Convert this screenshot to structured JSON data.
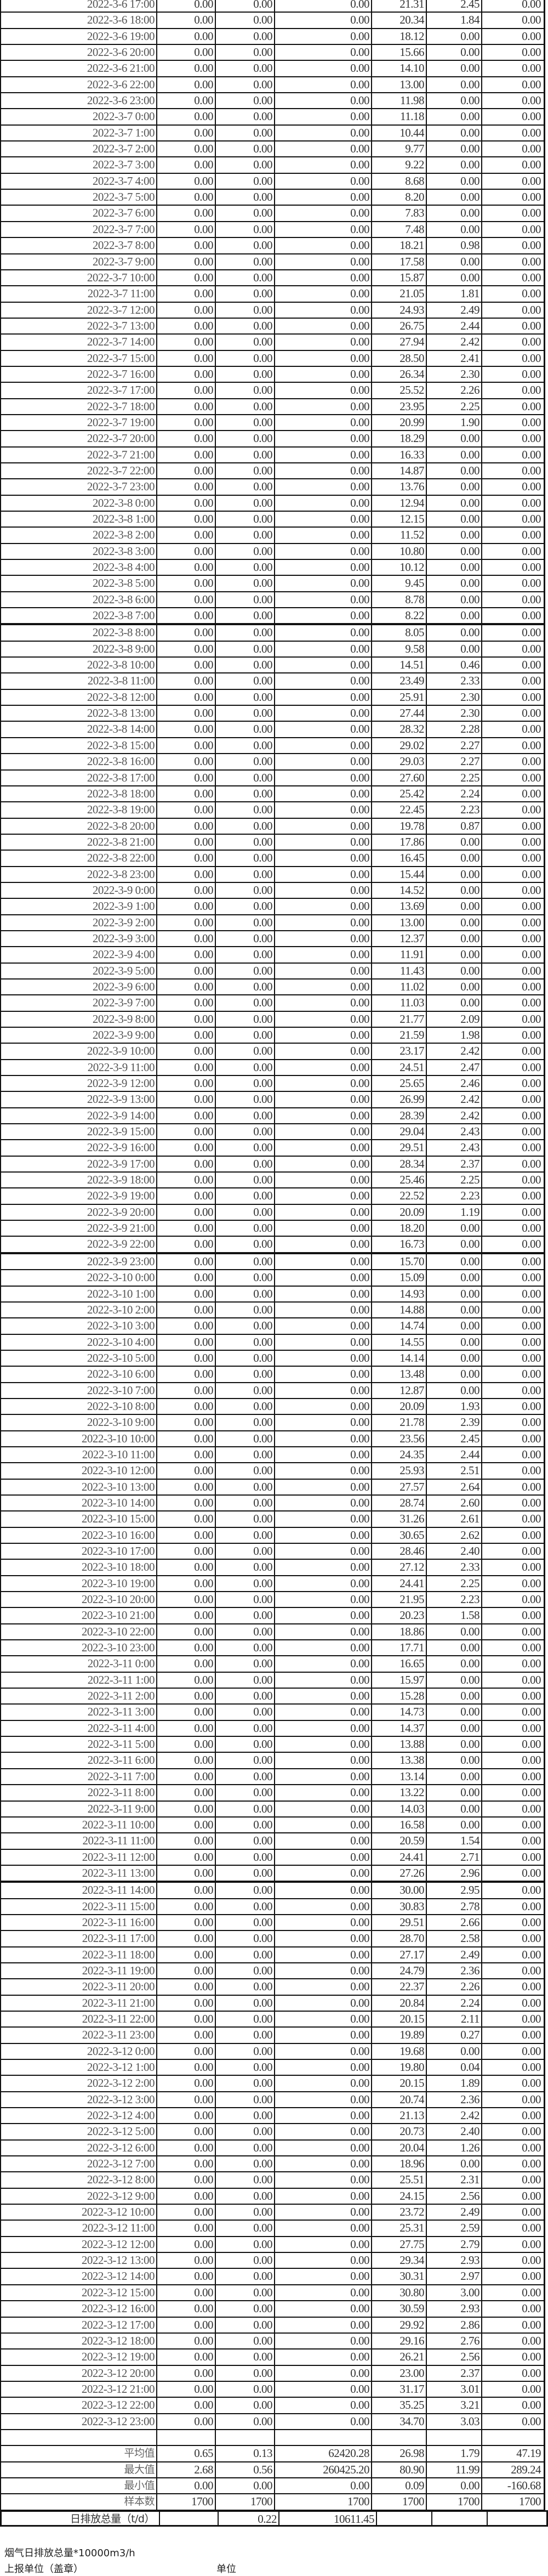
{
  "rows": [
    [
      "2022-3-6 17:00",
      "0.00",
      "0.00",
      "0.00",
      "21.31",
      "2.45",
      "0.00"
    ],
    [
      "2022-3-6 18:00",
      "0.00",
      "0.00",
      "0.00",
      "20.34",
      "1.84",
      "0.00"
    ],
    [
      "2022-3-6 19:00",
      "0.00",
      "0.00",
      "0.00",
      "18.12",
      "0.00",
      "0.00"
    ],
    [
      "2022-3-6 20:00",
      "0.00",
      "0.00",
      "0.00",
      "15.66",
      "0.00",
      "0.00"
    ],
    [
      "2022-3-6 21:00",
      "0.00",
      "0.00",
      "0.00",
      "14.10",
      "0.00",
      "0.00"
    ],
    [
      "2022-3-6 22:00",
      "0.00",
      "0.00",
      "0.00",
      "13.00",
      "0.00",
      "0.00"
    ],
    [
      "2022-3-6 23:00",
      "0.00",
      "0.00",
      "0.00",
      "11.98",
      "0.00",
      "0.00"
    ],
    [
      "2022-3-7 0:00",
      "0.00",
      "0.00",
      "0.00",
      "11.18",
      "0.00",
      "0.00"
    ],
    [
      "2022-3-7 1:00",
      "0.00",
      "0.00",
      "0.00",
      "10.44",
      "0.00",
      "0.00"
    ],
    [
      "2022-3-7 2:00",
      "0.00",
      "0.00",
      "0.00",
      "9.77",
      "0.00",
      "0.00"
    ],
    [
      "2022-3-7 3:00",
      "0.00",
      "0.00",
      "0.00",
      "9.22",
      "0.00",
      "0.00"
    ],
    [
      "2022-3-7 4:00",
      "0.00",
      "0.00",
      "0.00",
      "8.68",
      "0.00",
      "0.00"
    ],
    [
      "2022-3-7 5:00",
      "0.00",
      "0.00",
      "0.00",
      "8.20",
      "0.00",
      "0.00"
    ],
    [
      "2022-3-7 6:00",
      "0.00",
      "0.00",
      "0.00",
      "7.83",
      "0.00",
      "0.00"
    ],
    [
      "2022-3-7 7:00",
      "0.00",
      "0.00",
      "0.00",
      "7.48",
      "0.00",
      "0.00"
    ],
    [
      "2022-3-7 8:00",
      "0.00",
      "0.00",
      "0.00",
      "18.21",
      "0.98",
      "0.00"
    ],
    [
      "2022-3-7 9:00",
      "0.00",
      "0.00",
      "0.00",
      "17.58",
      "0.00",
      "0.00"
    ],
    [
      "2022-3-7 10:00",
      "0.00",
      "0.00",
      "0.00",
      "15.87",
      "0.00",
      "0.00"
    ],
    [
      "2022-3-7 11:00",
      "0.00",
      "0.00",
      "0.00",
      "21.05",
      "1.81",
      "0.00"
    ],
    [
      "2022-3-7 12:00",
      "0.00",
      "0.00",
      "0.00",
      "24.93",
      "2.49",
      "0.00"
    ],
    [
      "2022-3-7 13:00",
      "0.00",
      "0.00",
      "0.00",
      "26.75",
      "2.44",
      "0.00"
    ],
    [
      "2022-3-7 14:00",
      "0.00",
      "0.00",
      "0.00",
      "27.94",
      "2.42",
      "0.00"
    ],
    [
      "2022-3-7 15:00",
      "0.00",
      "0.00",
      "0.00",
      "28.50",
      "2.41",
      "0.00"
    ],
    [
      "2022-3-7 16:00",
      "0.00",
      "0.00",
      "0.00",
      "26.34",
      "2.30",
      "0.00"
    ],
    [
      "2022-3-7 17:00",
      "0.00",
      "0.00",
      "0.00",
      "25.52",
      "2.26",
      "0.00"
    ],
    [
      "2022-3-7 18:00",
      "0.00",
      "0.00",
      "0.00",
      "23.95",
      "2.25",
      "0.00"
    ],
    [
      "2022-3-7 19:00",
      "0.00",
      "0.00",
      "0.00",
      "20.99",
      "1.90",
      "0.00"
    ],
    [
      "2022-3-7 20:00",
      "0.00",
      "0.00",
      "0.00",
      "18.29",
      "0.00",
      "0.00"
    ],
    [
      "2022-3-7 21:00",
      "0.00",
      "0.00",
      "0.00",
      "16.33",
      "0.00",
      "0.00"
    ],
    [
      "2022-3-7 22:00",
      "0.00",
      "0.00",
      "0.00",
      "14.87",
      "0.00",
      "0.00"
    ],
    [
      "2022-3-7 23:00",
      "0.00",
      "0.00",
      "0.00",
      "13.76",
      "0.00",
      "0.00"
    ],
    [
      "2022-3-8 0:00",
      "0.00",
      "0.00",
      "0.00",
      "12.94",
      "0.00",
      "0.00"
    ],
    [
      "2022-3-8 1:00",
      "0.00",
      "0.00",
      "0.00",
      "12.15",
      "0.00",
      "0.00"
    ],
    [
      "2022-3-8 2:00",
      "0.00",
      "0.00",
      "0.00",
      "11.52",
      "0.00",
      "0.00"
    ],
    [
      "2022-3-8 3:00",
      "0.00",
      "0.00",
      "0.00",
      "10.80",
      "0.00",
      "0.00"
    ],
    [
      "2022-3-8 4:00",
      "0.00",
      "0.00",
      "0.00",
      "10.12",
      "0.00",
      "0.00"
    ],
    [
      "2022-3-8 5:00",
      "0.00",
      "0.00",
      "0.00",
      "9.45",
      "0.00",
      "0.00"
    ],
    [
      "2022-3-8 6:00",
      "0.00",
      "0.00",
      "0.00",
      "8.78",
      "0.00",
      "0.00"
    ],
    [
      "2022-3-8 7:00",
      "0.00",
      "0.00",
      "0.00",
      "8.22",
      "0.00",
      "0.00"
    ],
    [
      "2022-3-8 8:00",
      "0.00",
      "0.00",
      "0.00",
      "8.05",
      "0.00",
      "0.00"
    ],
    [
      "2022-3-8 9:00",
      "0.00",
      "0.00",
      "0.00",
      "9.58",
      "0.00",
      "0.00"
    ],
    [
      "2022-3-8 10:00",
      "0.00",
      "0.00",
      "0.00",
      "14.51",
      "0.46",
      "0.00"
    ],
    [
      "2022-3-8 11:00",
      "0.00",
      "0.00",
      "0.00",
      "23.49",
      "2.33",
      "0.00"
    ],
    [
      "2022-3-8 12:00",
      "0.00",
      "0.00",
      "0.00",
      "25.91",
      "2.30",
      "0.00"
    ],
    [
      "2022-3-8 13:00",
      "0.00",
      "0.00",
      "0.00",
      "27.44",
      "2.30",
      "0.00"
    ],
    [
      "2022-3-8 14:00",
      "0.00",
      "0.00",
      "0.00",
      "28.32",
      "2.28",
      "0.00"
    ],
    [
      "2022-3-8 15:00",
      "0.00",
      "0.00",
      "0.00",
      "29.02",
      "2.27",
      "0.00"
    ],
    [
      "2022-3-8 16:00",
      "0.00",
      "0.00",
      "0.00",
      "29.03",
      "2.27",
      "0.00"
    ],
    [
      "2022-3-8 17:00",
      "0.00",
      "0.00",
      "0.00",
      "27.60",
      "2.25",
      "0.00"
    ],
    [
      "2022-3-8 18:00",
      "0.00",
      "0.00",
      "0.00",
      "25.42",
      "2.24",
      "0.00"
    ],
    [
      "2022-3-8 19:00",
      "0.00",
      "0.00",
      "0.00",
      "22.45",
      "2.23",
      "0.00"
    ],
    [
      "2022-3-8 20:00",
      "0.00",
      "0.00",
      "0.00",
      "19.78",
      "0.87",
      "0.00"
    ],
    [
      "2022-3-8 21:00",
      "0.00",
      "0.00",
      "0.00",
      "17.86",
      "0.00",
      "0.00"
    ],
    [
      "2022-3-8 22:00",
      "0.00",
      "0.00",
      "0.00",
      "16.45",
      "0.00",
      "0.00"
    ],
    [
      "2022-3-8 23:00",
      "0.00",
      "0.00",
      "0.00",
      "15.44",
      "0.00",
      "0.00"
    ],
    [
      "2022-3-9 0:00",
      "0.00",
      "0.00",
      "0.00",
      "14.52",
      "0.00",
      "0.00"
    ],
    [
      "2022-3-9 1:00",
      "0.00",
      "0.00",
      "0.00",
      "13.69",
      "0.00",
      "0.00"
    ],
    [
      "2022-3-9 2:00",
      "0.00",
      "0.00",
      "0.00",
      "13.00",
      "0.00",
      "0.00"
    ],
    [
      "2022-3-9 3:00",
      "0.00",
      "0.00",
      "0.00",
      "12.37",
      "0.00",
      "0.00"
    ],
    [
      "2022-3-9 4:00",
      "0.00",
      "0.00",
      "0.00",
      "11.91",
      "0.00",
      "0.00"
    ],
    [
      "2022-3-9 5:00",
      "0.00",
      "0.00",
      "0.00",
      "11.43",
      "0.00",
      "0.00"
    ],
    [
      "2022-3-9 6:00",
      "0.00",
      "0.00",
      "0.00",
      "11.02",
      "0.00",
      "0.00"
    ],
    [
      "2022-3-9 7:00",
      "0.00",
      "0.00",
      "0.00",
      "11.03",
      "0.00",
      "0.00"
    ],
    [
      "2022-3-9 8:00",
      "0.00",
      "0.00",
      "0.00",
      "21.77",
      "2.09",
      "0.00"
    ],
    [
      "2022-3-9 9:00",
      "0.00",
      "0.00",
      "0.00",
      "21.59",
      "1.98",
      "0.00"
    ],
    [
      "2022-3-9 10:00",
      "0.00",
      "0.00",
      "0.00",
      "23.17",
      "2.42",
      "0.00"
    ],
    [
      "2022-3-9 11:00",
      "0.00",
      "0.00",
      "0.00",
      "24.51",
      "2.47",
      "0.00"
    ],
    [
      "2022-3-9 12:00",
      "0.00",
      "0.00",
      "0.00",
      "25.65",
      "2.46",
      "0.00"
    ],
    [
      "2022-3-9 13:00",
      "0.00",
      "0.00",
      "0.00",
      "26.99",
      "2.42",
      "0.00"
    ],
    [
      "2022-3-9 14:00",
      "0.00",
      "0.00",
      "0.00",
      "28.39",
      "2.42",
      "0.00"
    ],
    [
      "2022-3-9 15:00",
      "0.00",
      "0.00",
      "0.00",
      "29.04",
      "2.43",
      "0.00"
    ],
    [
      "2022-3-9 16:00",
      "0.00",
      "0.00",
      "0.00",
      "29.51",
      "2.43",
      "0.00"
    ],
    [
      "2022-3-9 17:00",
      "0.00",
      "0.00",
      "0.00",
      "28.34",
      "2.37",
      "0.00"
    ],
    [
      "2022-3-9 18:00",
      "0.00",
      "0.00",
      "0.00",
      "25.46",
      "2.25",
      "0.00"
    ],
    [
      "2022-3-9 19:00",
      "0.00",
      "0.00",
      "0.00",
      "22.52",
      "2.23",
      "0.00"
    ],
    [
      "2022-3-9 20:00",
      "0.00",
      "0.00",
      "0.00",
      "20.09",
      "1.19",
      "0.00"
    ],
    [
      "2022-3-9 21:00",
      "0.00",
      "0.00",
      "0.00",
      "18.20",
      "0.00",
      "0.00"
    ],
    [
      "2022-3-9 22:00",
      "0.00",
      "0.00",
      "0.00",
      "16.73",
      "0.00",
      "0.00"
    ],
    [
      "2022-3-9 23:00",
      "0.00",
      "0.00",
      "0.00",
      "15.70",
      "0.00",
      "0.00"
    ],
    [
      "2022-3-10 0:00",
      "0.00",
      "0.00",
      "0.00",
      "15.09",
      "0.00",
      "0.00"
    ],
    [
      "2022-3-10 1:00",
      "0.00",
      "0.00",
      "0.00",
      "14.93",
      "0.00",
      "0.00"
    ],
    [
      "2022-3-10 2:00",
      "0.00",
      "0.00",
      "0.00",
      "14.88",
      "0.00",
      "0.00"
    ],
    [
      "2022-3-10 3:00",
      "0.00",
      "0.00",
      "0.00",
      "14.74",
      "0.00",
      "0.00"
    ],
    [
      "2022-3-10 4:00",
      "0.00",
      "0.00",
      "0.00",
      "14.55",
      "0.00",
      "0.00"
    ],
    [
      "2022-3-10 5:00",
      "0.00",
      "0.00",
      "0.00",
      "14.14",
      "0.00",
      "0.00"
    ],
    [
      "2022-3-10 6:00",
      "0.00",
      "0.00",
      "0.00",
      "13.48",
      "0.00",
      "0.00"
    ],
    [
      "2022-3-10 7:00",
      "0.00",
      "0.00",
      "0.00",
      "12.87",
      "0.00",
      "0.00"
    ],
    [
      "2022-3-10 8:00",
      "0.00",
      "0.00",
      "0.00",
      "20.09",
      "1.93",
      "0.00"
    ],
    [
      "2022-3-10 9:00",
      "0.00",
      "0.00",
      "0.00",
      "21.78",
      "2.39",
      "0.00"
    ],
    [
      "2022-3-10 10:00",
      "0.00",
      "0.00",
      "0.00",
      "23.56",
      "2.45",
      "0.00"
    ],
    [
      "2022-3-10 11:00",
      "0.00",
      "0.00",
      "0.00",
      "24.35",
      "2.44",
      "0.00"
    ],
    [
      "2022-3-10 12:00",
      "0.00",
      "0.00",
      "0.00",
      "25.93",
      "2.51",
      "0.00"
    ],
    [
      "2022-3-10 13:00",
      "0.00",
      "0.00",
      "0.00",
      "27.57",
      "2.64",
      "0.00"
    ],
    [
      "2022-3-10 14:00",
      "0.00",
      "0.00",
      "0.00",
      "28.74",
      "2.60",
      "0.00"
    ],
    [
      "2022-3-10 15:00",
      "0.00",
      "0.00",
      "0.00",
      "31.26",
      "2.61",
      "0.00"
    ],
    [
      "2022-3-10 16:00",
      "0.00",
      "0.00",
      "0.00",
      "30.65",
      "2.62",
      "0.00"
    ],
    [
      "2022-3-10 17:00",
      "0.00",
      "0.00",
      "0.00",
      "28.46",
      "2.40",
      "0.00"
    ],
    [
      "2022-3-10 18:00",
      "0.00",
      "0.00",
      "0.00",
      "27.12",
      "2.33",
      "0.00"
    ],
    [
      "2022-3-10 19:00",
      "0.00",
      "0.00",
      "0.00",
      "24.41",
      "2.25",
      "0.00"
    ],
    [
      "2022-3-10 20:00",
      "0.00",
      "0.00",
      "0.00",
      "21.95",
      "2.23",
      "0.00"
    ],
    [
      "2022-3-10 21:00",
      "0.00",
      "0.00",
      "0.00",
      "20.23",
      "1.58",
      "0.00"
    ],
    [
      "2022-3-10 22:00",
      "0.00",
      "0.00",
      "0.00",
      "18.86",
      "0.00",
      "0.00"
    ],
    [
      "2022-3-10 23:00",
      "0.00",
      "0.00",
      "0.00",
      "17.71",
      "0.00",
      "0.00"
    ],
    [
      "2022-3-11 0:00",
      "0.00",
      "0.00",
      "0.00",
      "16.65",
      "0.00",
      "0.00"
    ],
    [
      "2022-3-11 1:00",
      "0.00",
      "0.00",
      "0.00",
      "15.97",
      "0.00",
      "0.00"
    ],
    [
      "2022-3-11 2:00",
      "0.00",
      "0.00",
      "0.00",
      "15.28",
      "0.00",
      "0.00"
    ],
    [
      "2022-3-11 3:00",
      "0.00",
      "0.00",
      "0.00",
      "14.73",
      "0.00",
      "0.00"
    ],
    [
      "2022-3-11 4:00",
      "0.00",
      "0.00",
      "0.00",
      "14.37",
      "0.00",
      "0.00"
    ],
    [
      "2022-3-11 5:00",
      "0.00",
      "0.00",
      "0.00",
      "13.88",
      "0.00",
      "0.00"
    ],
    [
      "2022-3-11 6:00",
      "0.00",
      "0.00",
      "0.00",
      "13.38",
      "0.00",
      "0.00"
    ],
    [
      "2022-3-11 7:00",
      "0.00",
      "0.00",
      "0.00",
      "13.14",
      "0.00",
      "0.00"
    ],
    [
      "2022-3-11 8:00",
      "0.00",
      "0.00",
      "0.00",
      "13.22",
      "0.00",
      "0.00"
    ],
    [
      "2022-3-11 9:00",
      "0.00",
      "0.00",
      "0.00",
      "14.03",
      "0.00",
      "0.00"
    ],
    [
      "2022-3-11 10:00",
      "0.00",
      "0.00",
      "0.00",
      "16.58",
      "0.00",
      "0.00"
    ],
    [
      "2022-3-11 11:00",
      "0.00",
      "0.00",
      "0.00",
      "20.59",
      "1.54",
      "0.00"
    ],
    [
      "2022-3-11 12:00",
      "0.00",
      "0.00",
      "0.00",
      "24.41",
      "2.71",
      "0.00"
    ],
    [
      "2022-3-11 13:00",
      "0.00",
      "0.00",
      "0.00",
      "27.26",
      "2.96",
      "0.00"
    ],
    [
      "2022-3-11 14:00",
      "0.00",
      "0.00",
      "0.00",
      "30.00",
      "2.95",
      "0.00"
    ],
    [
      "2022-3-11 15:00",
      "0.00",
      "0.00",
      "0.00",
      "30.83",
      "2.78",
      "0.00"
    ],
    [
      "2022-3-11 16:00",
      "0.00",
      "0.00",
      "0.00",
      "29.51",
      "2.66",
      "0.00"
    ],
    [
      "2022-3-11 17:00",
      "0.00",
      "0.00",
      "0.00",
      "28.70",
      "2.58",
      "0.00"
    ],
    [
      "2022-3-11 18:00",
      "0.00",
      "0.00",
      "0.00",
      "27.17",
      "2.49",
      "0.00"
    ],
    [
      "2022-3-11 19:00",
      "0.00",
      "0.00",
      "0.00",
      "24.79",
      "2.36",
      "0.00"
    ],
    [
      "2022-3-11 20:00",
      "0.00",
      "0.00",
      "0.00",
      "22.37",
      "2.26",
      "0.00"
    ],
    [
      "2022-3-11 21:00",
      "0.00",
      "0.00",
      "0.00",
      "20.84",
      "2.24",
      "0.00"
    ],
    [
      "2022-3-11 22:00",
      "0.00",
      "0.00",
      "0.00",
      "20.15",
      "2.11",
      "0.00"
    ],
    [
      "2022-3-11 23:00",
      "0.00",
      "0.00",
      "0.00",
      "19.89",
      "0.27",
      "0.00"
    ],
    [
      "2022-3-12 0:00",
      "0.00",
      "0.00",
      "0.00",
      "19.68",
      "0.00",
      "0.00"
    ],
    [
      "2022-3-12 1:00",
      "0.00",
      "0.00",
      "0.00",
      "19.80",
      "0.04",
      "0.00"
    ],
    [
      "2022-3-12 2:00",
      "0.00",
      "0.00",
      "0.00",
      "20.15",
      "1.89",
      "0.00"
    ],
    [
      "2022-3-12 3:00",
      "0.00",
      "0.00",
      "0.00",
      "20.74",
      "2.36",
      "0.00"
    ],
    [
      "2022-3-12 4:00",
      "0.00",
      "0.00",
      "0.00",
      "21.13",
      "2.42",
      "0.00"
    ],
    [
      "2022-3-12 5:00",
      "0.00",
      "0.00",
      "0.00",
      "20.73",
      "2.40",
      "0.00"
    ],
    [
      "2022-3-12 6:00",
      "0.00",
      "0.00",
      "0.00",
      "20.04",
      "1.26",
      "0.00"
    ],
    [
      "2022-3-12 7:00",
      "0.00",
      "0.00",
      "0.00",
      "18.96",
      "0.00",
      "0.00"
    ],
    [
      "2022-3-12 8:00",
      "0.00",
      "0.00",
      "0.00",
      "25.51",
      "2.31",
      "0.00"
    ],
    [
      "2022-3-12 9:00",
      "0.00",
      "0.00",
      "0.00",
      "24.15",
      "2.56",
      "0.00"
    ],
    [
      "2022-3-12 10:00",
      "0.00",
      "0.00",
      "0.00",
      "23.72",
      "2.49",
      "0.00"
    ],
    [
      "2022-3-12 11:00",
      "0.00",
      "0.00",
      "0.00",
      "25.31",
      "2.59",
      "0.00"
    ],
    [
      "2022-3-12 12:00",
      "0.00",
      "0.00",
      "0.00",
      "27.75",
      "2.79",
      "0.00"
    ],
    [
      "2022-3-12 13:00",
      "0.00",
      "0.00",
      "0.00",
      "29.34",
      "2.93",
      "0.00"
    ],
    [
      "2022-3-12 14:00",
      "0.00",
      "0.00",
      "0.00",
      "30.31",
      "2.97",
      "0.00"
    ],
    [
      "2022-3-12 15:00",
      "0.00",
      "0.00",
      "0.00",
      "30.80",
      "3.00",
      "0.00"
    ],
    [
      "2022-3-12 16:00",
      "0.00",
      "0.00",
      "0.00",
      "30.59",
      "2.93",
      "0.00"
    ],
    [
      "2022-3-12 17:00",
      "0.00",
      "0.00",
      "0.00",
      "29.92",
      "2.86",
      "0.00"
    ],
    [
      "2022-3-12 18:00",
      "0.00",
      "0.00",
      "0.00",
      "29.16",
      "2.76",
      "0.00"
    ],
    [
      "2022-3-12 19:00",
      "0.00",
      "0.00",
      "0.00",
      "26.21",
      "2.56",
      "0.00"
    ],
    [
      "2022-3-12 20:00",
      "0.00",
      "0.00",
      "0.00",
      "23.00",
      "2.37",
      "0.00"
    ],
    [
      "2022-3-12 21:00",
      "0.00",
      "0.00",
      "0.00",
      "31.17",
      "3.01",
      "0.00"
    ],
    [
      "2022-3-12 22:00",
      "0.00",
      "0.00",
      "0.00",
      "35.25",
      "3.21",
      "0.00"
    ],
    [
      "2022-3-12 23:00",
      "0.00",
      "0.00",
      "0.00",
      "34.70",
      "3.03",
      "0.00"
    ]
  ],
  "page_breaks_after": [
    "2022-3-8 7:00",
    "2022-3-9 22:00",
    "2022-3-11 13:00"
  ],
  "stats": [
    [
      "平均值",
      "0.65",
      "0.13",
      "62420.28",
      "26.98",
      "1.79",
      "47.19"
    ],
    [
      "最大值",
      "2.68",
      "0.56",
      "260425.20",
      "80.90",
      "11.99",
      "289.24"
    ],
    [
      "最小值",
      "0.00",
      "0.00",
      "0.00",
      "0.09",
      "0.00",
      "-160.68"
    ],
    [
      "样本数",
      "1700",
      "1700",
      "1700",
      "1700",
      "1700",
      "1700"
    ]
  ],
  "daily_total": {
    "label": "日排放总量（t/d）",
    "values": [
      "",
      "0.22",
      "10611.45",
      "",
      "",
      ""
    ]
  },
  "footer": {
    "flue_gas_note": "烟气日排放总量*10000m3/h",
    "reporting_unit_label": "上报单位（盖章）",
    "unit_label": "单位"
  }
}
